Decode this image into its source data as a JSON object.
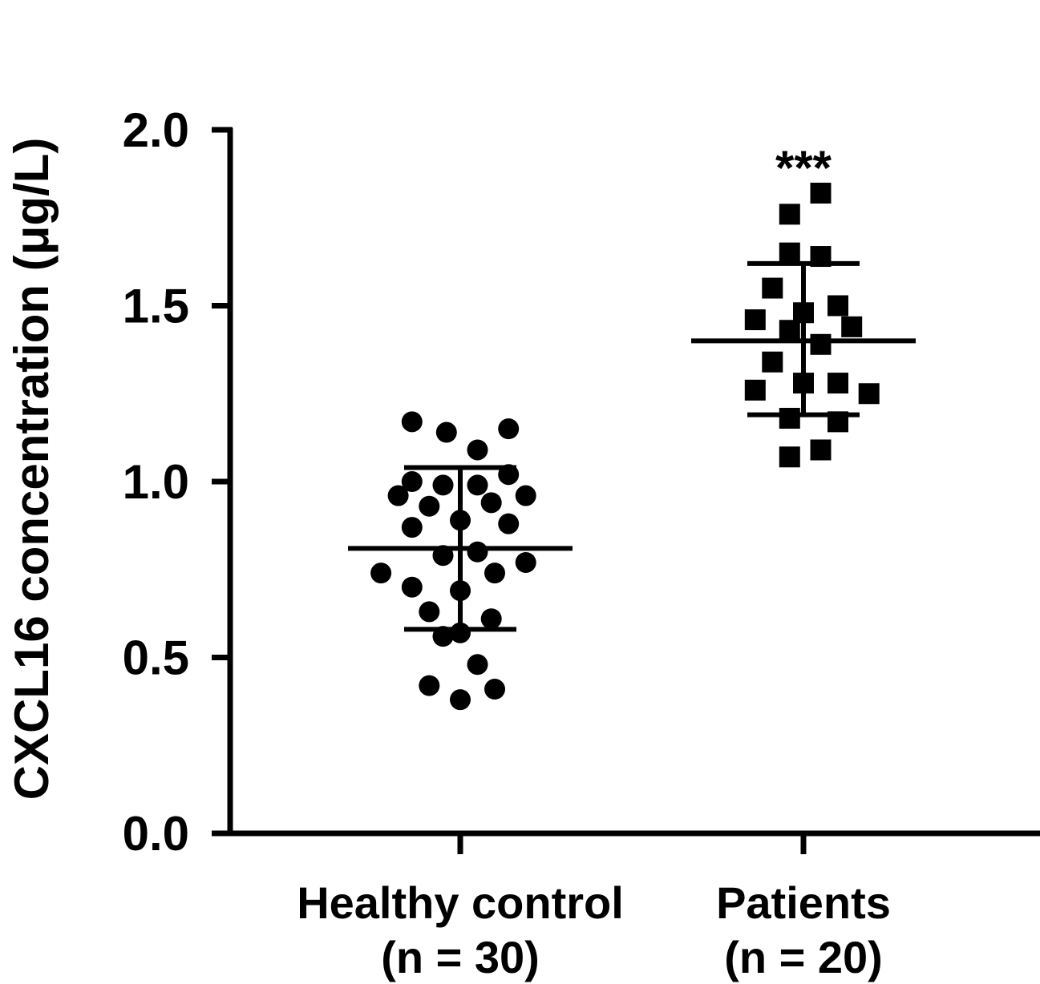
{
  "chart_data": {
    "type": "scatter",
    "ylabel": "CXCL16 concentration (μg/L)",
    "ylim": [
      0,
      2.0
    ],
    "yticks": [
      0.0,
      0.5,
      1.0,
      1.5,
      2.0
    ],
    "ytick_labels": [
      "0.0",
      "0.5",
      "1.0",
      "1.5",
      "2.0"
    ],
    "categories": [
      {
        "line1": "Healthy control",
        "line2": "(n = 30)"
      },
      {
        "line1": "Patients",
        "line2": "(n = 20)"
      }
    ],
    "groups": [
      {
        "marker": "circle",
        "mean": 0.81,
        "sd_upper": 1.04,
        "sd_lower": 0.58,
        "points": [
          {
            "x": -0.14,
            "y": 1.17
          },
          {
            "x": -0.04,
            "y": 1.14
          },
          {
            "x": 0.05,
            "y": 1.09
          },
          {
            "x": 0.14,
            "y": 1.15
          },
          {
            "x": -0.14,
            "y": 1.0
          },
          {
            "x": -0.05,
            "y": 0.99
          },
          {
            "x": 0.05,
            "y": 0.99
          },
          {
            "x": 0.14,
            "y": 1.02
          },
          {
            "x": -0.18,
            "y": 0.96
          },
          {
            "x": -0.09,
            "y": 0.93
          },
          {
            "x": 0.09,
            "y": 0.94
          },
          {
            "x": 0.19,
            "y": 0.96
          },
          {
            "x": -0.14,
            "y": 0.87
          },
          {
            "x": 0.0,
            "y": 0.89
          },
          {
            "x": 0.14,
            "y": 0.88
          },
          {
            "x": -0.05,
            "y": 0.79
          },
          {
            "x": 0.05,
            "y": 0.8
          },
          {
            "x": -0.23,
            "y": 0.74
          },
          {
            "x": 0.19,
            "y": 0.77
          },
          {
            "x": -0.14,
            "y": 0.7
          },
          {
            "x": 0.0,
            "y": 0.69
          },
          {
            "x": 0.1,
            "y": 0.74
          },
          {
            "x": -0.09,
            "y": 0.63
          },
          {
            "x": 0.09,
            "y": 0.61
          },
          {
            "x": -0.05,
            "y": 0.56
          },
          {
            "x": 0.0,
            "y": 0.57
          },
          {
            "x": 0.05,
            "y": 0.48
          },
          {
            "x": -0.09,
            "y": 0.42
          },
          {
            "x": 0.1,
            "y": 0.41
          },
          {
            "x": 0.0,
            "y": 0.38
          }
        ]
      },
      {
        "marker": "square",
        "mean": 1.4,
        "sd_upper": 1.62,
        "sd_lower": 1.19,
        "annotation": "***",
        "points": [
          {
            "x": 0.05,
            "y": 1.82
          },
          {
            "x": -0.04,
            "y": 1.76
          },
          {
            "x": -0.04,
            "y": 1.65
          },
          {
            "x": 0.05,
            "y": 1.64
          },
          {
            "x": -0.09,
            "y": 1.55
          },
          {
            "x": 0.1,
            "y": 1.5
          },
          {
            "x": 0.0,
            "y": 1.48
          },
          {
            "x": -0.14,
            "y": 1.46
          },
          {
            "x": -0.04,
            "y": 1.43
          },
          {
            "x": 0.14,
            "y": 1.44
          },
          {
            "x": 0.05,
            "y": 1.39
          },
          {
            "x": -0.09,
            "y": 1.34
          },
          {
            "x": 0.0,
            "y": 1.28
          },
          {
            "x": 0.1,
            "y": 1.28
          },
          {
            "x": -0.14,
            "y": 1.26
          },
          {
            "x": 0.19,
            "y": 1.25
          },
          {
            "x": -0.04,
            "y": 1.18
          },
          {
            "x": 0.1,
            "y": 1.17
          },
          {
            "x": 0.05,
            "y": 1.09
          },
          {
            "x": -0.04,
            "y": 1.07
          }
        ]
      }
    ]
  }
}
